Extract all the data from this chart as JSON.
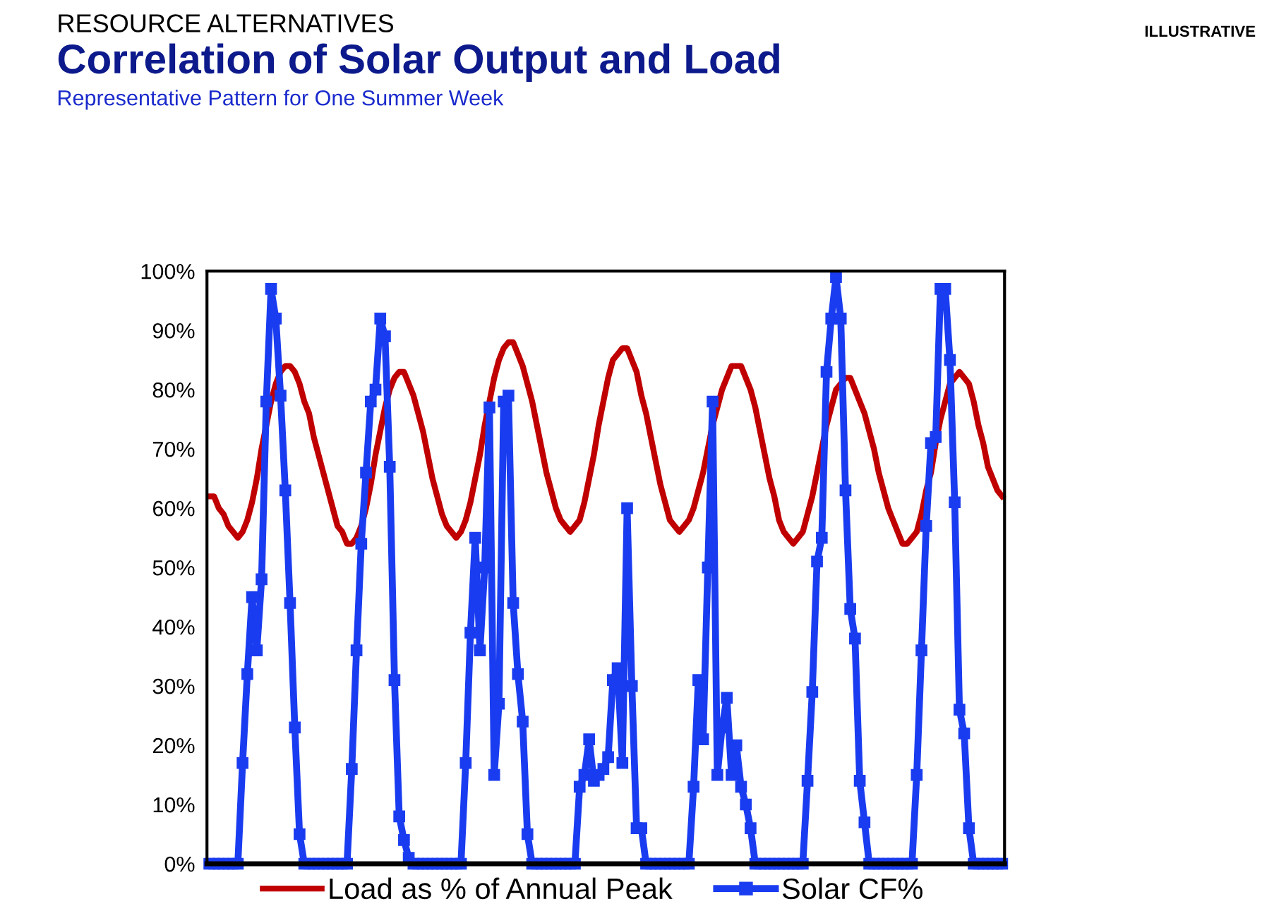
{
  "chart_data": {
    "type": "line",
    "title": "Correlation of Solar Output and Load",
    "subtitle": "Representative Pattern for One Summer Week",
    "annotations": [
      "RESOURCE ALTERNATIVES",
      "ILLUSTRATIVE"
    ],
    "categories": [
      null,
      null,
      null,
      null,
      null,
      null,
      null,
      null,
      null,
      null,
      null,
      null,
      null,
      null,
      null,
      null,
      null,
      null,
      null,
      null,
      null,
      null,
      null,
      null,
      null,
      null,
      null,
      null,
      null,
      null,
      null,
      null,
      null,
      null,
      null,
      null,
      null,
      null,
      null,
      null,
      null,
      null,
      null,
      null,
      null,
      null,
      null,
      null,
      null,
      null,
      null,
      null,
      null,
      null,
      null,
      null,
      null,
      null,
      null,
      null,
      null,
      null,
      null,
      null,
      null,
      null,
      null,
      null,
      null,
      null,
      null,
      null,
      null,
      null,
      null,
      null,
      null,
      null,
      null,
      null,
      null,
      null,
      null,
      null,
      null,
      null,
      null,
      null,
      null,
      null,
      null,
      null,
      null,
      null,
      null,
      null,
      null,
      null,
      null,
      null,
      null,
      null,
      null,
      null,
      null,
      null,
      null,
      null,
      null,
      null,
      null,
      null,
      null,
      null,
      null,
      null,
      null,
      null,
      null,
      null,
      null,
      null,
      null,
      null,
      null,
      null,
      null,
      null,
      null,
      null,
      null,
      null,
      null,
      null,
      null,
      null,
      null,
      null,
      null,
      null,
      null,
      null,
      null,
      null,
      null,
      null,
      null,
      null,
      null,
      null,
      null,
      null,
      null,
      null,
      null,
      null,
      null,
      null,
      null,
      null,
      null,
      null,
      null,
      null,
      null,
      null,
      null,
      null
    ],
    "series": [
      {
        "name": "Load as % of Annual Peak",
        "color": "#c00000",
        "marker": "none",
        "values": [
          62,
          62,
          60,
          59,
          57,
          56,
          55,
          56,
          58,
          61,
          65,
          70,
          74,
          78,
          81,
          83,
          84,
          84,
          83,
          81,
          78,
          76,
          72,
          69,
          66,
          63,
          60,
          57,
          56,
          54,
          54,
          55,
          57,
          60,
          64,
          69,
          73,
          77,
          80,
          82,
          83,
          83,
          81,
          79,
          76,
          73,
          69,
          65,
          62,
          59,
          57,
          56,
          55,
          56,
          58,
          61,
          65,
          69,
          74,
          78,
          82,
          85,
          87,
          88,
          88,
          86,
          84,
          81,
          78,
          74,
          70,
          66,
          63,
          60,
          58,
          57,
          56,
          57,
          58,
          61,
          65,
          69,
          74,
          78,
          82,
          85,
          86,
          87,
          87,
          85,
          83,
          79,
          76,
          72,
          68,
          64,
          61,
          58,
          57,
          56,
          57,
          58,
          60,
          63,
          66,
          70,
          74,
          77,
          80,
          82,
          84,
          84,
          84,
          82,
          80,
          77,
          73,
          69,
          65,
          62,
          58,
          56,
          55,
          54,
          55,
          56,
          59,
          62,
          66,
          70,
          74,
          77,
          80,
          81,
          82,
          82,
          80,
          78,
          76,
          73,
          70,
          66,
          63,
          60,
          58,
          56,
          54,
          54,
          55,
          56,
          59,
          63,
          66,
          71,
          75,
          78,
          81,
          82,
          83,
          82,
          81,
          78,
          74,
          71,
          67,
          65,
          63,
          62
        ]
      },
      {
        "name": "Solar CF%",
        "color": "#1a3cf0",
        "marker": "square",
        "values": [
          0,
          0,
          0,
          0,
          0,
          0,
          0,
          17,
          32,
          45,
          36,
          48,
          78,
          97,
          92,
          79,
          63,
          44,
          23,
          5,
          0,
          0,
          0,
          0,
          0,
          0,
          0,
          0,
          0,
          0,
          16,
          36,
          54,
          66,
          78,
          80,
          92,
          89,
          67,
          31,
          8,
          4,
          1,
          0,
          0,
          0,
          0,
          0,
          0,
          0,
          0,
          0,
          0,
          0,
          17,
          39,
          55,
          36,
          50,
          77,
          15,
          27,
          78,
          79,
          44,
          32,
          24,
          5,
          0,
          0,
          0,
          0,
          0,
          0,
          0,
          0,
          0,
          0,
          13,
          15,
          21,
          14,
          15,
          16,
          18,
          31,
          33,
          17,
          60,
          30,
          6,
          6,
          0,
          0,
          0,
          0,
          0,
          0,
          0,
          0,
          0,
          0,
          13,
          31,
          21,
          50,
          78,
          15,
          23,
          28,
          15,
          20,
          13,
          10,
          6,
          0,
          0,
          0,
          0,
          0,
          0,
          0,
          0,
          0,
          0,
          0,
          14,
          29,
          51,
          55,
          83,
          92,
          99,
          92,
          63,
          43,
          38,
          14,
          7,
          0,
          0,
          0,
          0,
          0,
          0,
          0,
          0,
          0,
          0,
          15,
          36,
          57,
          71,
          72,
          97,
          97,
          85,
          61,
          26,
          22,
          6,
          0,
          0,
          0,
          0,
          0,
          0,
          0
        ]
      }
    ],
    "ylim": [
      0,
      100
    ],
    "yticks": [
      {
        "value": 0,
        "label": "0%"
      },
      {
        "value": 10,
        "label": "10%"
      },
      {
        "value": 20,
        "label": "20%"
      },
      {
        "value": 30,
        "label": "30%"
      },
      {
        "value": 40,
        "label": "40%"
      },
      {
        "value": 50,
        "label": "50%"
      },
      {
        "value": 60,
        "label": "60%"
      },
      {
        "value": 70,
        "label": "70%"
      },
      {
        "value": 80,
        "label": "80%"
      },
      {
        "value": 90,
        "label": "90%"
      },
      {
        "value": 100,
        "label": "100%"
      }
    ],
    "tick_labels": "y",
    "legend": "bottom",
    "grid": false
  }
}
